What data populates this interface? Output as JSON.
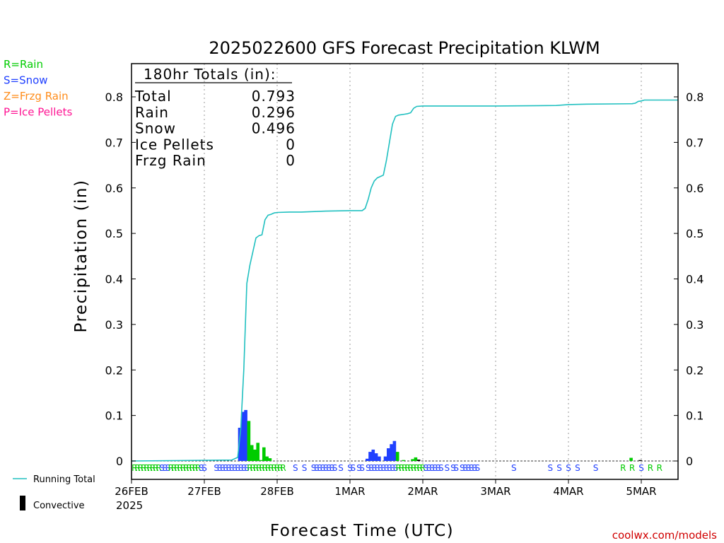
{
  "chart_data": {
    "type": "bar",
    "title": "2025022600 GFS Forecast Precipitation KLWM",
    "xlabel": "Forecast Time (UTC)",
    "ylabel": "Precipitation (in)",
    "ylim": [
      0,
      0.88
    ],
    "y_ticks": [
      "0",
      "0.1",
      "0.2",
      "0.3",
      "0.4",
      "0.5",
      "0.6",
      "0.7",
      "0.8"
    ],
    "x_tick_labels": [
      "26FEB",
      "27FEB",
      "28FEB",
      "1MAR",
      "2MAR",
      "3MAR",
      "4MAR",
      "5MAR"
    ],
    "x_year_label": "2025",
    "x_range_hours": [
      0,
      180
    ],
    "grid": "vertical dotted",
    "legend_left": [
      {
        "label": "R=Rain",
        "color": "#00cc00"
      },
      {
        "label": "S=Snow",
        "color": "#2040ff"
      },
      {
        "label": "Z=Frzg Rain",
        "color": "#ff8c1a"
      },
      {
        "label": "P=Ice Pellets",
        "color": "#ff1493"
      }
    ],
    "legend_bottom": [
      {
        "label": "Running Total",
        "color": "#20c0c0"
      },
      {
        "label": "Convective",
        "color": "#000000"
      }
    ],
    "totals_box": {
      "header": "180hr Totals (in):",
      "rows": [
        {
          "label": "Total",
          "value": "0.793"
        },
        {
          "label": "Rain",
          "value": "0.296"
        },
        {
          "label": "Snow",
          "value": "0.496"
        },
        {
          "label": "Ice Pellets",
          "value": "0"
        },
        {
          "label": "Frzg Rain",
          "value": "0"
        }
      ]
    },
    "series": [
      {
        "name": "Running Total",
        "type": "line",
        "color": "#20c0c0",
        "points": [
          [
            0,
            0
          ],
          [
            33,
            0.002
          ],
          [
            35,
            0.008
          ],
          [
            36,
            0.07
          ],
          [
            37,
            0.2
          ],
          [
            38,
            0.39
          ],
          [
            39,
            0.43
          ],
          [
            40,
            0.46
          ],
          [
            41,
            0.49
          ],
          [
            42,
            0.495
          ],
          [
            43,
            0.497
          ],
          [
            44,
            0.53
          ],
          [
            45,
            0.54
          ],
          [
            46,
            0.542
          ],
          [
            47,
            0.545
          ],
          [
            48,
            0.546
          ],
          [
            52,
            0.547
          ],
          [
            56,
            0.547
          ],
          [
            64,
            0.549
          ],
          [
            72,
            0.55
          ],
          [
            76,
            0.55
          ],
          [
            77,
            0.555
          ],
          [
            78,
            0.575
          ],
          [
            79,
            0.6
          ],
          [
            80,
            0.615
          ],
          [
            81,
            0.622
          ],
          [
            83,
            0.628
          ],
          [
            84,
            0.66
          ],
          [
            85,
            0.7
          ],
          [
            86,
            0.74
          ],
          [
            87,
            0.757
          ],
          [
            88,
            0.76
          ],
          [
            90,
            0.762
          ],
          [
            91,
            0.763
          ],
          [
            92,
            0.765
          ],
          [
            93,
            0.775
          ],
          [
            94,
            0.779
          ],
          [
            96,
            0.78
          ],
          [
            120,
            0.78
          ],
          [
            140,
            0.781
          ],
          [
            144,
            0.783
          ],
          [
            150,
            0.784
          ],
          [
            165,
            0.785
          ],
          [
            166,
            0.786
          ],
          [
            167,
            0.79
          ],
          [
            168,
            0.791
          ],
          [
            169,
            0.793
          ],
          [
            180,
            0.793
          ]
        ]
      },
      {
        "name": "Snow",
        "type": "bar",
        "color": "#2040ff",
        "bars": [
          [
            36,
            0.073
          ],
          [
            37,
            0.108
          ],
          [
            38,
            0.112
          ],
          [
            78,
            0.005
          ],
          [
            79,
            0.02
          ],
          [
            80,
            0.025
          ],
          [
            81,
            0.017
          ],
          [
            82,
            0.01
          ],
          [
            84,
            0.01
          ],
          [
            85,
            0.028
          ],
          [
            86,
            0.037
          ],
          [
            87,
            0.044
          ]
        ]
      },
      {
        "name": "Rain",
        "type": "bar",
        "color": "#00cc00",
        "bars": [
          [
            39,
            0.088
          ],
          [
            40,
            0.035
          ],
          [
            41,
            0.025
          ],
          [
            42,
            0.04
          ],
          [
            43,
            0.002
          ],
          [
            44,
            0.03
          ],
          [
            45,
            0.01
          ],
          [
            46,
            0.006
          ],
          [
            88,
            0.02
          ],
          [
            90,
            0.002
          ],
          [
            93,
            0.004
          ],
          [
            94,
            0.008
          ],
          [
            165,
            0.007
          ]
        ]
      },
      {
        "name": "Convective",
        "type": "bar",
        "color": "#000000",
        "bars": [
          [
            95,
            0.003
          ],
          [
            168,
            0.002
          ]
        ]
      }
    ],
    "ptype_markers": {
      "rain_color": "#00cc00",
      "snow_color": "#2040ff",
      "marks": [
        [
          1,
          "R"
        ],
        [
          2,
          "R"
        ],
        [
          3,
          "R"
        ],
        [
          4,
          "R"
        ],
        [
          5,
          "R"
        ],
        [
          6,
          "R"
        ],
        [
          7,
          "R"
        ],
        [
          8,
          "R"
        ],
        [
          9,
          "R"
        ],
        [
          10,
          "S"
        ],
        [
          11,
          "S"
        ],
        [
          12,
          "S"
        ],
        [
          13,
          "R"
        ],
        [
          14,
          "R"
        ],
        [
          15,
          "R"
        ],
        [
          16,
          "R"
        ],
        [
          17,
          "R"
        ],
        [
          18,
          "R"
        ],
        [
          19,
          "R"
        ],
        [
          20,
          "R"
        ],
        [
          21,
          "R"
        ],
        [
          22,
          "R"
        ],
        [
          23,
          "S"
        ],
        [
          24,
          "S"
        ],
        [
          28,
          "S"
        ],
        [
          29,
          "S"
        ],
        [
          30,
          "S"
        ],
        [
          31,
          "S"
        ],
        [
          32,
          "S"
        ],
        [
          33,
          "S"
        ],
        [
          34,
          "S"
        ],
        [
          35,
          "S"
        ],
        [
          36,
          "S"
        ],
        [
          37,
          "S"
        ],
        [
          38,
          "S"
        ],
        [
          39,
          "R"
        ],
        [
          40,
          "R"
        ],
        [
          41,
          "R"
        ],
        [
          42,
          "R"
        ],
        [
          43,
          "R"
        ],
        [
          44,
          "R"
        ],
        [
          45,
          "R"
        ],
        [
          46,
          "R"
        ],
        [
          47,
          "R"
        ],
        [
          48,
          "R"
        ],
        [
          49,
          "R"
        ],
        [
          50,
          "R"
        ],
        [
          54,
          "S"
        ],
        [
          57,
          "S"
        ],
        [
          60,
          "S"
        ],
        [
          61,
          "S"
        ],
        [
          62,
          "S"
        ],
        [
          63,
          "S"
        ],
        [
          64,
          "S"
        ],
        [
          65,
          "S"
        ],
        [
          66,
          "S"
        ],
        [
          67,
          "S"
        ],
        [
          69,
          "S"
        ],
        [
          72,
          "S"
        ],
        [
          73,
          "S"
        ],
        [
          75,
          "S"
        ],
        [
          76,
          "S"
        ],
        [
          78,
          "S"
        ],
        [
          79,
          "S"
        ],
        [
          80,
          "S"
        ],
        [
          81,
          "S"
        ],
        [
          82,
          "S"
        ],
        [
          83,
          "S"
        ],
        [
          84,
          "S"
        ],
        [
          85,
          "S"
        ],
        [
          86,
          "S"
        ],
        [
          87,
          "S"
        ],
        [
          88,
          "R"
        ],
        [
          89,
          "R"
        ],
        [
          90,
          "R"
        ],
        [
          91,
          "R"
        ],
        [
          92,
          "R"
        ],
        [
          93,
          "R"
        ],
        [
          94,
          "R"
        ],
        [
          95,
          "R"
        ],
        [
          96,
          "R"
        ],
        [
          97,
          "S"
        ],
        [
          98,
          "S"
        ],
        [
          99,
          "S"
        ],
        [
          100,
          "S"
        ],
        [
          101,
          "S"
        ],
        [
          102,
          "S"
        ],
        [
          104,
          "S"
        ],
        [
          106,
          "S"
        ],
        [
          107,
          "S"
        ],
        [
          109,
          "S"
        ],
        [
          110,
          "S"
        ],
        [
          111,
          "S"
        ],
        [
          112,
          "S"
        ],
        [
          113,
          "S"
        ],
        [
          114,
          "S"
        ],
        [
          126,
          "S"
        ],
        [
          138,
          "S"
        ],
        [
          141,
          "S"
        ],
        [
          144,
          "S"
        ],
        [
          147,
          "S"
        ],
        [
          153,
          "S"
        ],
        [
          162,
          "R"
        ],
        [
          165,
          "R"
        ],
        [
          168,
          "S"
        ],
        [
          171,
          "R"
        ],
        [
          174,
          "R"
        ]
      ]
    }
  },
  "watermark": "coolwx.com/models"
}
